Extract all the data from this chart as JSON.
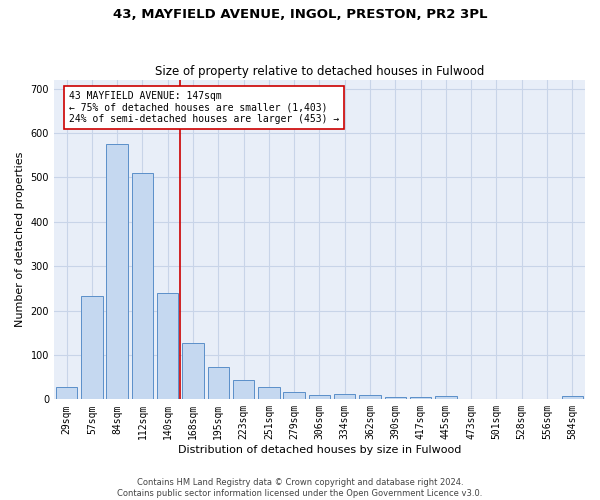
{
  "title": "43, MAYFIELD AVENUE, INGOL, PRESTON, PR2 3PL",
  "subtitle": "Size of property relative to detached houses in Fulwood",
  "xlabel": "Distribution of detached houses by size in Fulwood",
  "ylabel": "Number of detached properties",
  "categories": [
    "29sqm",
    "57sqm",
    "84sqm",
    "112sqm",
    "140sqm",
    "168sqm",
    "195sqm",
    "223sqm",
    "251sqm",
    "279sqm",
    "306sqm",
    "334sqm",
    "362sqm",
    "390sqm",
    "417sqm",
    "445sqm",
    "473sqm",
    "501sqm",
    "528sqm",
    "556sqm",
    "584sqm"
  ],
  "values": [
    27,
    232,
    575,
    510,
    240,
    127,
    72,
    43,
    27,
    17,
    10,
    12,
    10,
    5,
    5,
    8,
    0,
    0,
    0,
    0,
    7
  ],
  "bar_color": "#c5d8f0",
  "bar_edge_color": "#5b8fc9",
  "grid_color": "#c8d4e8",
  "background_color": "#e8eef8",
  "property_line_x": 4.5,
  "property_line_color": "#cc0000",
  "annotation_text": "43 MAYFIELD AVENUE: 147sqm\n← 75% of detached houses are smaller (1,403)\n24% of semi-detached houses are larger (453) →",
  "annotation_box_color": "#ffffff",
  "annotation_box_edge": "#cc0000",
  "footer_text": "Contains HM Land Registry data © Crown copyright and database right 2024.\nContains public sector information licensed under the Open Government Licence v3.0.",
  "ylim": [
    0,
    720
  ],
  "yticks": [
    0,
    100,
    200,
    300,
    400,
    500,
    600,
    700
  ],
  "title_fontsize": 9.5,
  "subtitle_fontsize": 8.5,
  "axis_label_fontsize": 8,
  "tick_fontsize": 7,
  "annotation_fontsize": 7,
  "footer_fontsize": 6
}
